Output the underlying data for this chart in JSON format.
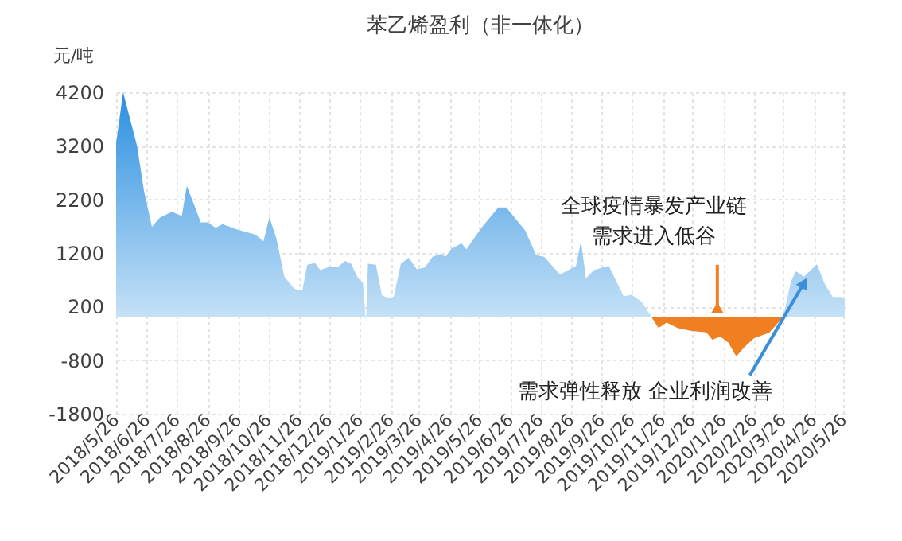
{
  "chart_data": {
    "type": "area",
    "title": "苯乙烯盈利（非一体化）",
    "ylabel": "元/吨",
    "series": [
      {
        "color": "#2a8fe0",
        "x": [
          "2018-05-26",
          "2018-06-02",
          "2018-06-16",
          "2018-06-23",
          "2018-07-01",
          "2018-07-09",
          "2018-07-21",
          "2018-07-31",
          "2018-08-05",
          "2018-08-13",
          "2018-08-19",
          "2018-08-26",
          "2018-09-03",
          "2018-09-10",
          "2018-09-24",
          "2018-10-13",
          "2018-10-21",
          "2018-10-27",
          "2018-11-03",
          "2018-11-11",
          "2018-11-21",
          "2018-11-29",
          "2018-12-04",
          "2018-12-12",
          "2018-12-17",
          "2018-12-26",
          "2019-01-04",
          "2019-01-11",
          "2019-01-17",
          "2019-01-24",
          "2019-01-29",
          "2019-02-01",
          "2019-02-03",
          "2019-02-11",
          "2019-02-17",
          "2019-02-25",
          "2019-03-01",
          "2019-03-08",
          "2019-03-16",
          "2019-03-24",
          "2019-04-01",
          "2019-04-09",
          "2019-04-17",
          "2019-04-22",
          "2019-04-28",
          "2019-05-08",
          "2019-05-13",
          "2019-05-28",
          "2019-06-14",
          "2019-06-22",
          "2019-07-11",
          "2019-07-22",
          "2019-07-30",
          "2019-08-15",
          "2019-08-31",
          "2019-09-05",
          "2019-09-10",
          "2019-09-18",
          "2019-10-03",
          "2019-10-18",
          "2019-10-26",
          "2019-11-05",
          "2019-11-15",
          "2020-03-26",
          "2020-04-03",
          "2020-04-08",
          "2020-04-16",
          "2020-04-29",
          "2020-05-07",
          "2020-05-15",
          "2020-05-23",
          "2020-05-27"
        ],
        "values": [
          3250,
          4200,
          3200,
          2360,
          1690,
          1860,
          1970,
          1890,
          2450,
          2070,
          1770,
          1770,
          1670,
          1740,
          1640,
          1540,
          1420,
          1870,
          1470,
          760,
          530,
          500,
          980,
          1010,
          880,
          940,
          940,
          1050,
          1000,
          730,
          640,
          -100,
          1000,
          980,
          410,
          350,
          390,
          1000,
          1110,
          900,
          930,
          1130,
          1180,
          1130,
          1280,
          1380,
          1270,
          1670,
          2050,
          2050,
          1620,
          1160,
          1130,
          800,
          960,
          1420,
          730,
          880,
          960,
          390,
          420,
          290,
          0,
          0,
          670,
          860,
          760,
          990,
          620,
          380,
          380,
          330
        ]
      },
      {
        "color": "#f07f22",
        "x": [
          "2019-11-15",
          "2019-11-22",
          "2019-11-30",
          "2019-12-11",
          "2019-12-24",
          "2020-01-09",
          "2020-01-15",
          "2020-01-23",
          "2020-01-31",
          "2020-02-08",
          "2020-02-16",
          "2020-02-26",
          "2020-03-12",
          "2020-03-26"
        ],
        "values": [
          0,
          -200,
          -100,
          -200,
          -250,
          -280,
          -420,
          -360,
          -470,
          -730,
          -560,
          -390,
          -290,
          0
        ]
      }
    ],
    "xlim": [
      "2018-05-26",
      "2020-05-27"
    ],
    "xticks": [
      {
        "value": "2018-05-26",
        "label": "2018/5/26"
      },
      {
        "value": "2018-06-26",
        "label": "2018/6/26"
      },
      {
        "value": "2018-07-26",
        "label": "2018/7/26"
      },
      {
        "value": "2018-08-26",
        "label": "2018/8/26"
      },
      {
        "value": "2018-09-26",
        "label": "2018/9/26"
      },
      {
        "value": "2018-10-26",
        "label": "2018/10/26"
      },
      {
        "value": "2018-11-26",
        "label": "2018/11/26"
      },
      {
        "value": "2018-12-26",
        "label": "2018/12/26"
      },
      {
        "value": "2019-01-26",
        "label": "2019/1/26"
      },
      {
        "value": "2019-02-26",
        "label": "2019/2/26"
      },
      {
        "value": "2019-03-26",
        "label": "2019/3/26"
      },
      {
        "value": "2019-04-26",
        "label": "2019/4/26"
      },
      {
        "value": "2019-05-26",
        "label": "2019/5/26"
      },
      {
        "value": "2019-06-26",
        "label": "2019/6/26"
      },
      {
        "value": "2019-07-26",
        "label": "2019/7/26"
      },
      {
        "value": "2019-08-26",
        "label": "2019/8/26"
      },
      {
        "value": "2019-09-26",
        "label": "2019/9/26"
      },
      {
        "value": "2019-10-26",
        "label": "2019/10/26"
      },
      {
        "value": "2019-11-26",
        "label": "2019/11/26"
      },
      {
        "value": "2019-12-26",
        "label": "2019/12/26"
      },
      {
        "value": "2020-01-26",
        "label": "2020/1/26"
      },
      {
        "value": "2020-02-26",
        "label": "2020/2/26"
      },
      {
        "value": "2020-03-26",
        "label": "2020/3/26"
      },
      {
        "value": "2020-04-26",
        "label": "2020/4/26"
      },
      {
        "value": "2020-05-26",
        "label": "2020/5/26"
      }
    ],
    "ylim": [
      -1800,
      4200
    ],
    "yticks": [
      -1800,
      -800,
      200,
      1200,
      2200,
      3200,
      4200
    ],
    "grid": true,
    "annotations": [
      {
        "text": "全球疫情暴发产业链需求进入低谷",
        "x": "2020-01-20",
        "y": 0
      },
      {
        "text": "需求弹性释放 企业利润改善",
        "x": "2020-04-16",
        "y": 760
      }
    ]
  }
}
